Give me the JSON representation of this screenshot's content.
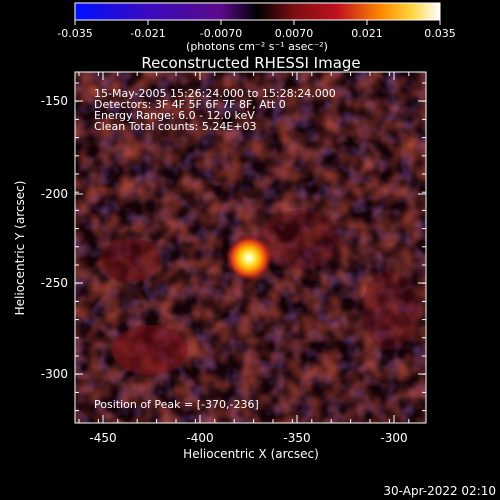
{
  "colorbar": {
    "ticks": [
      "-0.035",
      "-0.021",
      "-0.0070",
      "0.0070",
      "0.021",
      "0.035"
    ],
    "units": "(photons cm⁻² s⁻¹ asec⁻²)",
    "colors": {
      "low": "#0010ff",
      "mid_low": "#5b0a8a",
      "zero": "#000000",
      "mid_high": "#c1121f",
      "high_orange": "#ff8a00",
      "max": "#ffffff"
    }
  },
  "plot": {
    "title": "Reconstructed RHESSI Image",
    "info_lines": [
      "15-May-2005 15:26:24.000 to 15:28:24.000",
      "Detectors: 3F 4F 5F 6F 7F 8F, Att 0",
      "Energy Range: 6.0 - 12.0 keV",
      "Clean      Total counts: 5.24E+03"
    ],
    "peak_label": "Position of Peak = [-370,-236]",
    "xlabel": "Heliocentric X (arcsec)",
    "ylabel": "Heliocentric Y (arcsec)",
    "x_ticks": [
      "-450",
      "-400",
      "-350",
      "-300"
    ],
    "y_ticks": [
      "-150",
      "-200",
      "-250",
      "-300"
    ]
  },
  "footer": {
    "timestamp": "30-Apr-2022 02:10"
  }
}
